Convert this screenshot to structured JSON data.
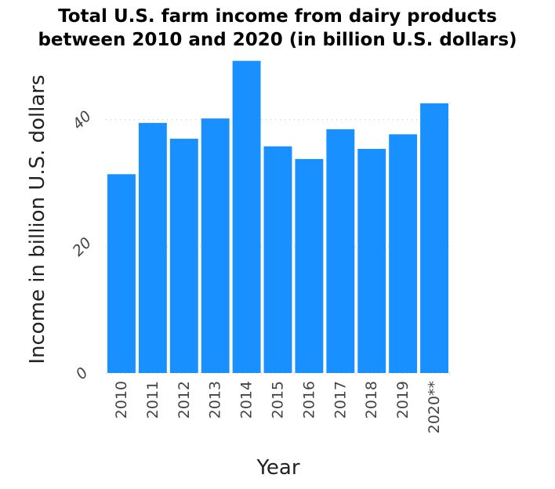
{
  "chart_data": {
    "type": "bar",
    "title_line1": "Total U.S. farm income from dairy products",
    "title_line2": "between 2010 and 2020 (in billion U.S. dollars)",
    "xlabel": "Year",
    "ylabel": "Income in billion U.S. dollars",
    "categories": [
      "2010",
      "2011",
      "2012",
      "2013",
      "2014",
      "2015",
      "2016",
      "2017",
      "2018",
      "2019",
      "2020**"
    ],
    "values": [
      31.4,
      39.5,
      37.0,
      40.2,
      49.3,
      35.8,
      33.8,
      38.5,
      35.4,
      37.7,
      42.6
    ],
    "y_ticks": [
      0,
      20,
      40
    ],
    "ylim": [
      0,
      50
    ],
    "grid": true,
    "bar_color": "#1890ff"
  }
}
